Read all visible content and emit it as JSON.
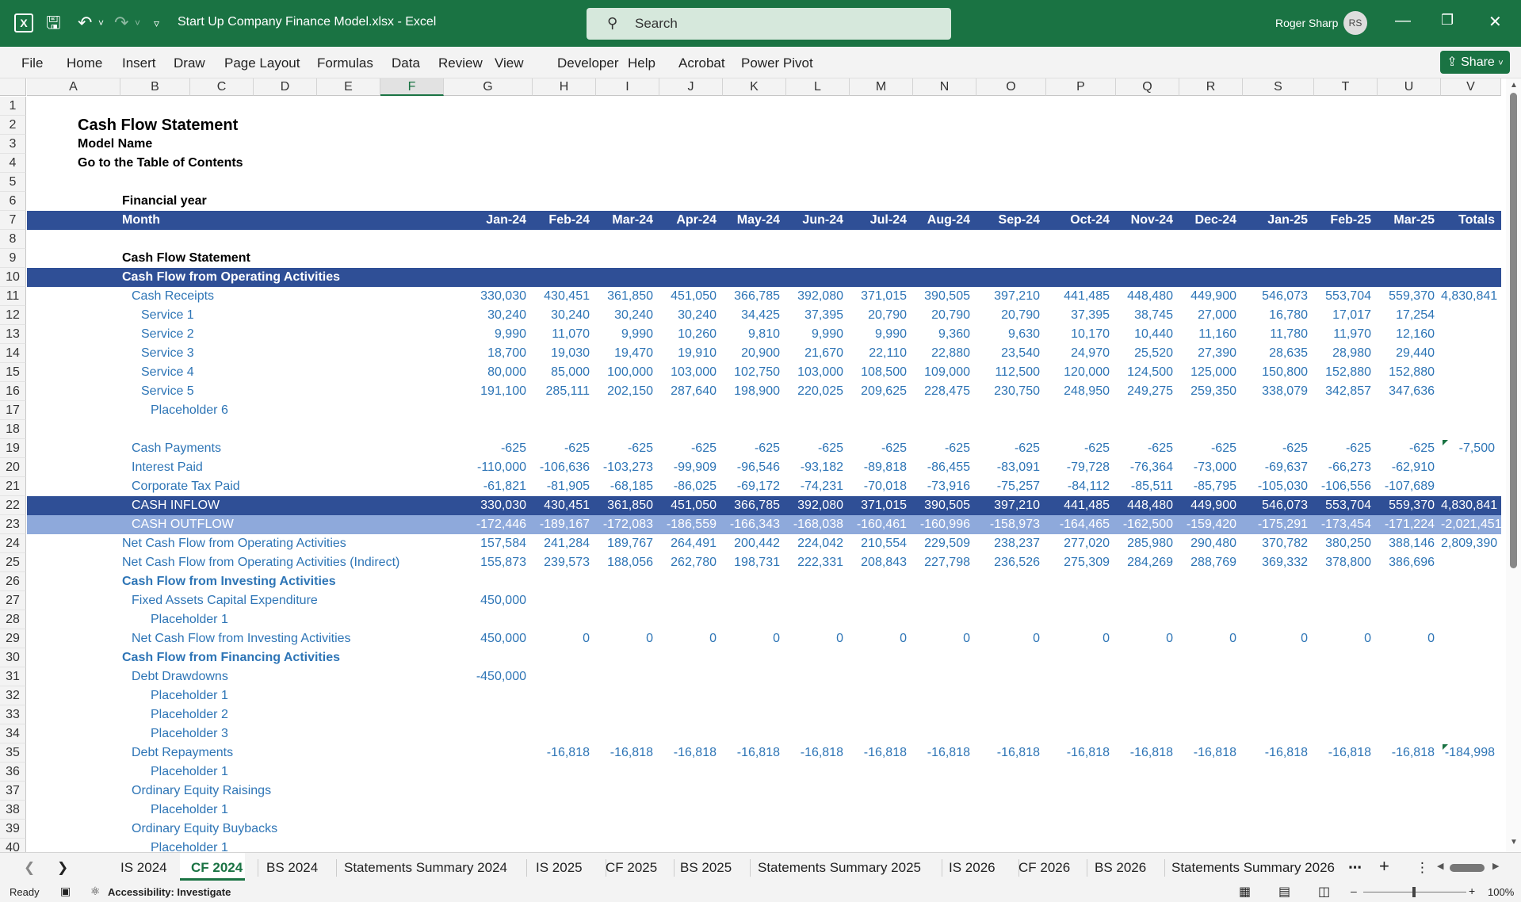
{
  "titlebar": {
    "title": "Start Up Company Finance Model.xlsx  -  Excel",
    "search_placeholder": "Search",
    "user": "Roger Sharp",
    "avatar": "RS"
  },
  "ribbon": {
    "tabs": [
      "File",
      "Home",
      "Insert",
      "Draw",
      "Page Layout",
      "Formulas",
      "Data",
      "Review",
      "View",
      "Developer",
      "Help",
      "Acrobat",
      "Power Pivot"
    ],
    "share_label": "Share"
  },
  "columns": [
    "A",
    "B",
    "C",
    "D",
    "E",
    "F",
    "G",
    "H",
    "I",
    "J",
    "K",
    "L",
    "M",
    "N",
    "O",
    "P",
    "Q",
    "R",
    "S",
    "T",
    "U",
    "V"
  ],
  "selected_column": "F",
  "rows": [
    {
      "n": "1"
    },
    {
      "n": "2",
      "title": "Cash Flow Statement"
    },
    {
      "n": "3",
      "sub": "Model Name"
    },
    {
      "n": "4",
      "sub": "Go to the Table of Contents"
    },
    {
      "n": "5"
    },
    {
      "n": "6",
      "b_label": "Financial year"
    },
    {
      "n": "7",
      "style": "header",
      "b_label": "Month",
      "values": [
        "Jan-24",
        "Feb-24",
        "Mar-24",
        "Apr-24",
        "May-24",
        "Jun-24",
        "Jul-24",
        "Aug-24",
        "Sep-24",
        "Oct-24",
        "Nov-24",
        "Dec-24",
        "Jan-25",
        "Feb-25",
        "Mar-25",
        "Totals"
      ]
    },
    {
      "n": "8"
    },
    {
      "n": "9",
      "b_label": "Cash Flow Statement"
    },
    {
      "n": "10",
      "style": "header",
      "b_label": "Cash Flow from Operating Activities"
    },
    {
      "n": "11",
      "label": "Cash Receipts",
      "indent": 1,
      "values": [
        "330,030",
        "430,451",
        "361,850",
        "451,050",
        "366,785",
        "392,080",
        "371,015",
        "390,505",
        "397,210",
        "441,485",
        "448,480",
        "449,900",
        "546,073",
        "553,704",
        "559,370",
        "4,830,841"
      ]
    },
    {
      "n": "12",
      "label": "Service 1",
      "indent": 2,
      "values": [
        "30,240",
        "30,240",
        "30,240",
        "30,240",
        "34,425",
        "37,395",
        "20,790",
        "20,790",
        "20,790",
        "37,395",
        "38,745",
        "27,000",
        "16,780",
        "17,017",
        "17,254",
        ""
      ]
    },
    {
      "n": "13",
      "label": "Service 2",
      "indent": 2,
      "values": [
        "9,990",
        "11,070",
        "9,990",
        "10,260",
        "9,810",
        "9,990",
        "9,990",
        "9,360",
        "9,630",
        "10,170",
        "10,440",
        "11,160",
        "11,780",
        "11,970",
        "12,160",
        ""
      ]
    },
    {
      "n": "14",
      "label": "Service 3",
      "indent": 2,
      "values": [
        "18,700",
        "19,030",
        "19,470",
        "19,910",
        "20,900",
        "21,670",
        "22,110",
        "22,880",
        "23,540",
        "24,970",
        "25,520",
        "27,390",
        "28,635",
        "28,980",
        "29,440",
        ""
      ]
    },
    {
      "n": "15",
      "label": "Service 4",
      "indent": 2,
      "values": [
        "80,000",
        "85,000",
        "100,000",
        "103,000",
        "102,750",
        "103,000",
        "108,500",
        "109,000",
        "112,500",
        "120,000",
        "124,500",
        "125,000",
        "150,800",
        "152,880",
        "152,880",
        ""
      ]
    },
    {
      "n": "16",
      "label": "Service 5",
      "indent": 2,
      "values": [
        "191,100",
        "285,111",
        "202,150",
        "287,640",
        "198,900",
        "220,025",
        "209,625",
        "228,475",
        "230,750",
        "248,950",
        "249,275",
        "259,350",
        "338,079",
        "342,857",
        "347,636",
        ""
      ]
    },
    {
      "n": "17",
      "label": "Placeholder 6",
      "indent": 3
    },
    {
      "n": "18"
    },
    {
      "n": "19",
      "label": "Cash Payments",
      "indent": 1,
      "flag": true,
      "values": [
        "-625",
        "-625",
        "-625",
        "-625",
        "-625",
        "-625",
        "-625",
        "-625",
        "-625",
        "-625",
        "-625",
        "-625",
        "-625",
        "-625",
        "-625",
        "-7,500"
      ]
    },
    {
      "n": "20",
      "label": "Interest Paid",
      "indent": 1,
      "values": [
        "-110,000",
        "-106,636",
        "-103,273",
        "-99,909",
        "-96,546",
        "-93,182",
        "-89,818",
        "-86,455",
        "-83,091",
        "-79,728",
        "-76,364",
        "-73,000",
        "-69,637",
        "-66,273",
        "-62,910",
        ""
      ]
    },
    {
      "n": "21",
      "label": "Corporate Tax Paid",
      "indent": 1,
      "values": [
        "-61,821",
        "-81,905",
        "-68,185",
        "-86,025",
        "-69,172",
        "-74,231",
        "-70,018",
        "-73,916",
        "-75,257",
        "-84,112",
        "-85,511",
        "-85,795",
        "-105,030",
        "-106,556",
        "-107,689",
        ""
      ]
    },
    {
      "n": "22",
      "style": "dark",
      "label": "CASH INFLOW",
      "indent": 1,
      "values": [
        "330,030",
        "430,451",
        "361,850",
        "451,050",
        "366,785",
        "392,080",
        "371,015",
        "390,505",
        "397,210",
        "441,485",
        "448,480",
        "449,900",
        "546,073",
        "553,704",
        "559,370",
        "4,830,841"
      ]
    },
    {
      "n": "23",
      "style": "light",
      "label": "CASH OUTFLOW",
      "indent": 1,
      "values": [
        "-172,446",
        "-189,167",
        "-172,083",
        "-186,559",
        "-166,343",
        "-168,038",
        "-160,461",
        "-160,996",
        "-158,973",
        "-164,465",
        "-162,500",
        "-159,420",
        "-175,291",
        "-173,454",
        "-171,224",
        "-2,021,451"
      ]
    },
    {
      "n": "24",
      "label": "Net Cash Flow from Operating Activities",
      "indent": 0,
      "values": [
        "157,584",
        "241,284",
        "189,767",
        "264,491",
        "200,442",
        "224,042",
        "210,554",
        "229,509",
        "238,237",
        "277,020",
        "285,980",
        "290,480",
        "370,782",
        "380,250",
        "388,146",
        "2,809,390"
      ]
    },
    {
      "n": "25",
      "label": "Net Cash Flow from Operating Activities (Indirect)",
      "indent": 0,
      "values": [
        "155,873",
        "239,573",
        "188,056",
        "262,780",
        "198,731",
        "222,331",
        "208,843",
        "227,798",
        "236,526",
        "275,309",
        "284,269",
        "288,769",
        "369,332",
        "378,800",
        "386,696",
        ""
      ]
    },
    {
      "n": "26",
      "label": "Cash Flow from Investing Activities",
      "indent": 0,
      "bold": true
    },
    {
      "n": "27",
      "label": "Fixed Assets Capital Expenditure",
      "indent": 1,
      "values": [
        "450,000",
        "",
        "",
        "",
        "",
        "",
        "",
        "",
        "",
        "",
        "",
        "",
        "",
        "",
        "",
        ""
      ]
    },
    {
      "n": "28",
      "label": "Placeholder 1",
      "indent": 3
    },
    {
      "n": "29",
      "label": "Net Cash Flow from Investing Activities",
      "indent": 1,
      "values": [
        "450,000",
        "0",
        "0",
        "0",
        "0",
        "0",
        "0",
        "0",
        "0",
        "0",
        "0",
        "0",
        "0",
        "0",
        "0",
        ""
      ]
    },
    {
      "n": "30",
      "label": "Cash Flow from Financing Activities",
      "indent": 0,
      "bold": true
    },
    {
      "n": "31",
      "label": "Debt Drawdowns",
      "indent": 1,
      "values": [
        "-450,000",
        "",
        "",
        "",
        "",
        "",
        "",
        "",
        "",
        "",
        "",
        "",
        "",
        "",
        "",
        ""
      ]
    },
    {
      "n": "32",
      "label": "Placeholder 1",
      "indent": 3
    },
    {
      "n": "33",
      "label": "Placeholder 2",
      "indent": 3
    },
    {
      "n": "34",
      "label": "Placeholder 3",
      "indent": 3
    },
    {
      "n": "35",
      "label": "Debt Repayments",
      "indent": 1,
      "flag": true,
      "values": [
        "",
        "-16,818",
        "-16,818",
        "-16,818",
        "-16,818",
        "-16,818",
        "-16,818",
        "-16,818",
        "-16,818",
        "-16,818",
        "-16,818",
        "-16,818",
        "-16,818",
        "-16,818",
        "-16,818",
        "-184,998"
      ]
    },
    {
      "n": "36",
      "label": "Placeholder 1",
      "indent": 3
    },
    {
      "n": "37",
      "label": "Ordinary Equity Raisings",
      "indent": 1
    },
    {
      "n": "38",
      "label": "Placeholder 1",
      "indent": 3
    },
    {
      "n": "39",
      "label": "Ordinary Equity Buybacks",
      "indent": 1
    },
    {
      "n": "40",
      "label": "Placeholder 1",
      "indent": 3
    }
  ],
  "sheet_tabs": [
    "IS 2024",
    "CF 2024",
    "BS 2024",
    "Statements Summary 2024",
    "IS 2025",
    "CF 2025",
    "BS 2025",
    "Statements Summary 2025",
    "IS 2026",
    "CF 2026",
    "BS 2026",
    "Statements Summary 2026"
  ],
  "active_sheet": "CF 2024",
  "status": {
    "ready": "Ready",
    "accessibility": "Accessibility: Investigate",
    "zoom": "100%"
  },
  "icons": [
    "excel-logo-icon",
    "save-icon",
    "undo-icon",
    "redo-icon",
    "customize-qat-icon",
    "search-icon",
    "minimize-icon",
    "restore-icon",
    "close-icon",
    "share-icon",
    "scroll-left-icon",
    "scroll-right-icon",
    "add-sheet-icon",
    "more-tabs-icon",
    "normal-view-icon",
    "page-layout-view-icon",
    "page-break-view-icon"
  ],
  "colors": {
    "brand": "#1a7343",
    "band_dark": "#2f4f96",
    "band_light": "#8ea9db",
    "label_blue": "#2e75b6"
  }
}
